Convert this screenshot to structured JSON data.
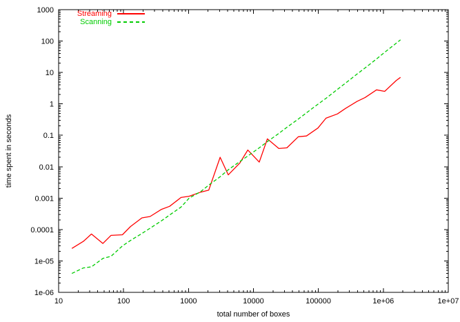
{
  "chart_data": {
    "type": "line",
    "title": "",
    "xlabel": "total number of boxes",
    "ylabel": "time spent in seconds",
    "x_scale": "log",
    "y_scale": "log",
    "x_range": [
      10,
      10000000
    ],
    "y_range": [
      1e-06,
      1000
    ],
    "grid": false,
    "legend_position": "top-left-inside",
    "x_ticks": [
      {
        "v": 10,
        "label": "10"
      },
      {
        "v": 100,
        "label": "100"
      },
      {
        "v": 1000,
        "label": "1000"
      },
      {
        "v": 10000,
        "label": "10000"
      },
      {
        "v": 100000,
        "label": "100000"
      },
      {
        "v": 1000000,
        "label": "1e+06"
      },
      {
        "v": 10000000,
        "label": "1e+07"
      }
    ],
    "y_ticks": [
      {
        "v": 1000,
        "label": "1000"
      },
      {
        "v": 100,
        "label": "100"
      },
      {
        "v": 10,
        "label": "10"
      },
      {
        "v": 1,
        "label": "1"
      },
      {
        "v": 0.1,
        "label": "0.1"
      },
      {
        "v": 0.01,
        "label": "0.01"
      },
      {
        "v": 0.001,
        "label": "0.001"
      },
      {
        "v": 0.0001,
        "label": "0.0001"
      },
      {
        "v": 1e-05,
        "label": "1e-05"
      },
      {
        "v": 1e-06,
        "label": "1e-06"
      }
    ],
    "x": [
      16,
      24,
      32,
      48,
      64,
      96,
      128,
      192,
      256,
      384,
      512,
      768,
      1024,
      1536,
      2048,
      3072,
      4096,
      6144,
      8192,
      12288,
      16384,
      24576,
      32768,
      49152,
      65536,
      98304,
      131072,
      196608,
      262144,
      393216,
      524288,
      786432,
      1048576,
      1572864,
      1835008
    ],
    "series": [
      {
        "name": "Streaming",
        "color": "#ff0000",
        "style": "solid",
        "values": [
          2.5e-05,
          4.2e-05,
          7.2e-05,
          3.6e-05,
          6.5e-05,
          6.8e-05,
          0.000125,
          0.000235,
          0.00026,
          0.00044,
          0.00055,
          0.00105,
          0.00115,
          0.00155,
          0.0018,
          0.02,
          0.0055,
          0.013,
          0.034,
          0.014,
          0.077,
          0.038,
          0.04,
          0.09,
          0.095,
          0.17,
          0.35,
          0.48,
          0.72,
          1.2,
          1.6,
          2.8,
          2.5,
          5.5,
          7.0
        ]
      },
      {
        "name": "Scanning",
        "color": "#00cc00",
        "style": "dashed",
        "values": [
          4e-06,
          6e-06,
          6.5e-06,
          1.2e-05,
          1.4e-05,
          3e-05,
          4.5e-05,
          7.5e-05,
          0.00011,
          0.00019,
          0.00029,
          0.00052,
          0.001,
          0.0016,
          0.0026,
          0.0048,
          0.008,
          0.0145,
          0.022,
          0.04,
          0.063,
          0.115,
          0.18,
          0.33,
          0.52,
          0.98,
          1.5,
          2.9,
          4.6,
          8.9,
          14,
          27,
          44,
          85,
          110
        ]
      }
    ]
  }
}
